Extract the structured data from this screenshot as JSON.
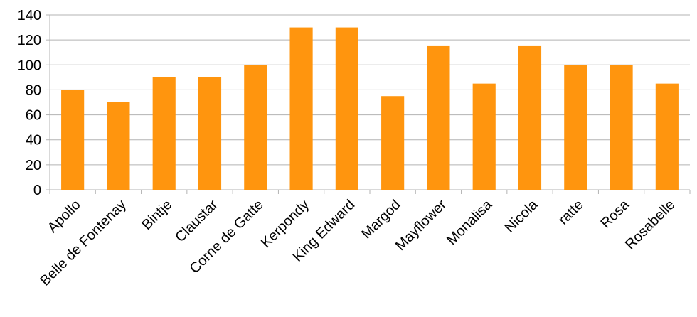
{
  "chart_data": {
    "type": "bar",
    "title": "",
    "xlabel": "",
    "ylabel": "",
    "categories": [
      "Apollo",
      "Belle de Fontenay",
      "Bintje",
      "Claustar",
      "Corne de Gatte",
      "Kerpondy",
      "King Edward",
      "Margod",
      "Mayflower",
      "Monalisa",
      "Nicola",
      "ratte",
      "Rosa",
      "Rosabelle"
    ],
    "values": [
      80,
      70,
      90,
      90,
      100,
      130,
      130,
      75,
      115,
      85,
      115,
      100,
      100,
      85
    ],
    "ylim": [
      0,
      140
    ],
    "yticks": [
      0,
      20,
      40,
      60,
      80,
      100,
      120,
      140
    ],
    "grid": true,
    "legend": "none",
    "bar_color": "#ff950e",
    "grid_color": "#b3b3b3",
    "axis_color": "#b3b3b3"
  }
}
